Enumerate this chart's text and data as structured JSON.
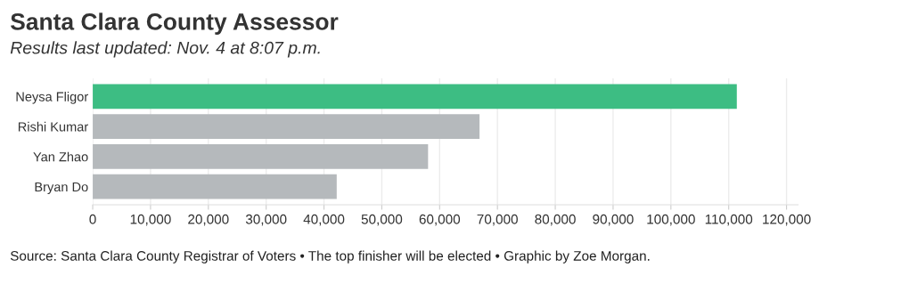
{
  "chart_data": {
    "type": "bar",
    "orientation": "horizontal",
    "title": "Santa Clara County Assessor",
    "subtitle": "Results last updated: Nov. 4 at 8:07 p.m.",
    "categories": [
      "Neysa Fligor",
      "Rishi Kumar",
      "Yan Zhao",
      "Bryan Do"
    ],
    "values": [
      111400,
      66900,
      58000,
      42200
    ],
    "colors": [
      "#3dbd83",
      "#b5b9bc",
      "#b5b9bc",
      "#b5b9bc"
    ],
    "xlim": [
      0,
      122000
    ],
    "xticks": [
      0,
      {
        "value": 10000,
        "label": "10,000"
      },
      {
        "value": 20000,
        "label": "20,000"
      },
      {
        "value": 30000,
        "label": "30,000"
      },
      {
        "value": 40000,
        "label": "40,000"
      },
      {
        "value": 50000,
        "label": "50,000"
      },
      {
        "value": 60000,
        "label": "60,000"
      },
      {
        "value": 70000,
        "label": "70,000"
      },
      {
        "value": 80000,
        "label": "80,000"
      },
      {
        "value": 90000,
        "label": "90,000"
      },
      {
        "value": 100000,
        "label": "100,000"
      },
      {
        "value": 110000,
        "label": "110,000"
      },
      {
        "value": 120000,
        "label": "120,000"
      }
    ],
    "grid": "x",
    "legend": false,
    "annotations": [
      "Source: Santa Clara County Registrar of Voters • The top finisher will be elected • Graphic by Zoe Morgan."
    ]
  }
}
